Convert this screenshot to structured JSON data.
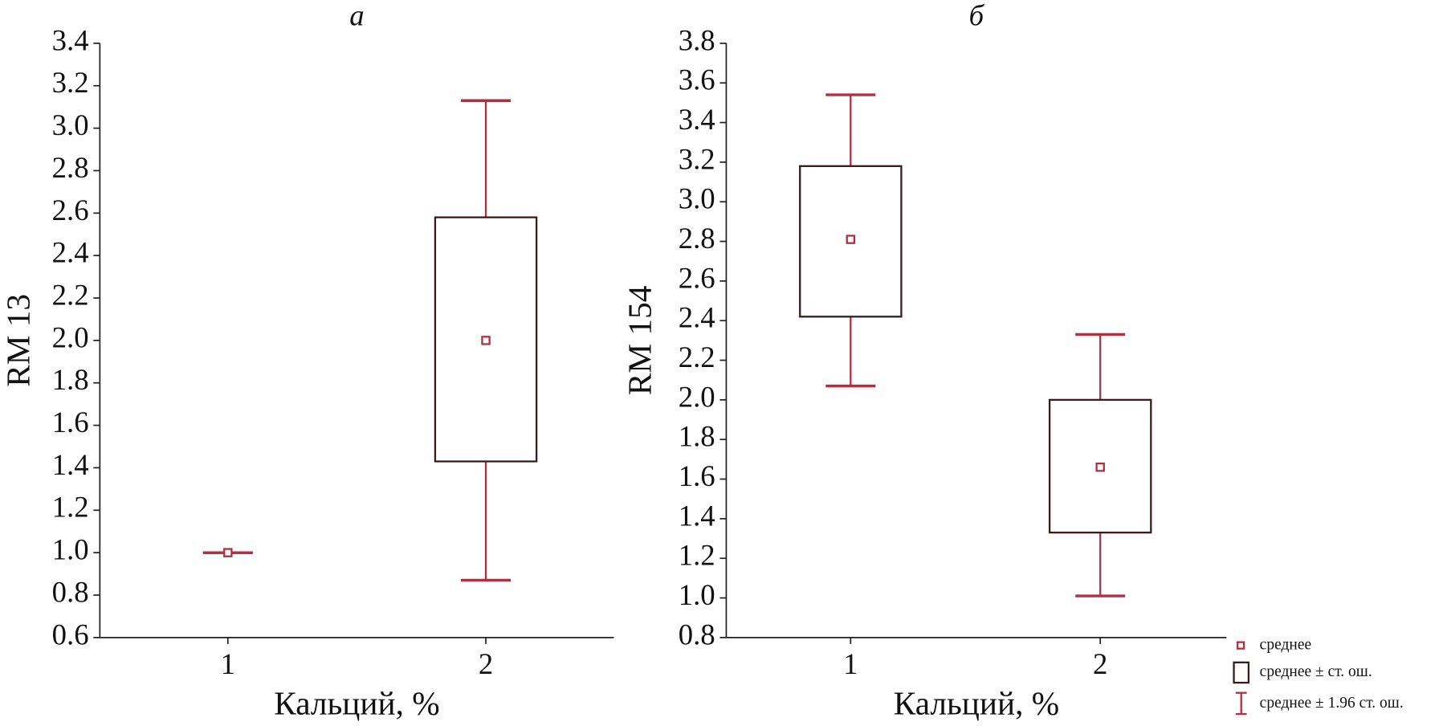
{
  "chart_data": [
    {
      "type": "box",
      "title": "а",
      "xlabel": "Кальций, %",
      "ylabel": "RM 13",
      "categories": [
        "1",
        "2"
      ],
      "mean": [
        1.0,
        2.0
      ],
      "box_low": [
        1.0,
        1.43
      ],
      "box_high": [
        1.0,
        2.58
      ],
      "whisker_low": [
        1.0,
        0.87
      ],
      "whisker_high": [
        1.0,
        3.13
      ],
      "box_color": "#3a1a1a",
      "whisker_color": "#b03040",
      "ylim": [
        0.6,
        3.4
      ],
      "yticks": [
        0.6,
        0.8,
        {
          "value": 1.0,
          "label": "1.0"
        },
        1.2,
        1.4,
        1.6,
        1.8,
        {
          "value": 2.0,
          "label": "2.0"
        },
        2.2,
        2.4,
        2.6,
        2.8,
        {
          "value": 3.0,
          "label": "3.0"
        },
        3.2,
        3.4
      ]
    },
    {
      "type": "box",
      "title": "б",
      "xlabel": "Кальций, %",
      "ylabel": "RM 154",
      "categories": [
        "1",
        "2"
      ],
      "mean": [
        2.81,
        1.66
      ],
      "box_low": [
        2.42,
        1.33
      ],
      "box_high": [
        3.18,
        2.0
      ],
      "whisker_low": [
        2.07,
        1.01
      ],
      "whisker_high": [
        3.54,
        2.33
      ],
      "box_color": "#3a1a1a",
      "whisker_color": "#b03040",
      "ylim": [
        0.8,
        3.8
      ],
      "yticks": [
        0.8,
        {
          "value": 1.0,
          "label": "1.0"
        },
        1.2,
        1.4,
        1.6,
        1.8,
        {
          "value": 2.0,
          "label": "2.0"
        },
        2.2,
        2.4,
        2.6,
        2.8,
        {
          "value": 3.0,
          "label": "3.0"
        },
        3.2,
        3.4,
        3.6,
        3.8
      ]
    }
  ],
  "legend": [
    "среднее",
    "среднее ± ст. ош.",
    "среднее ± 1.96 ст. ош."
  ]
}
